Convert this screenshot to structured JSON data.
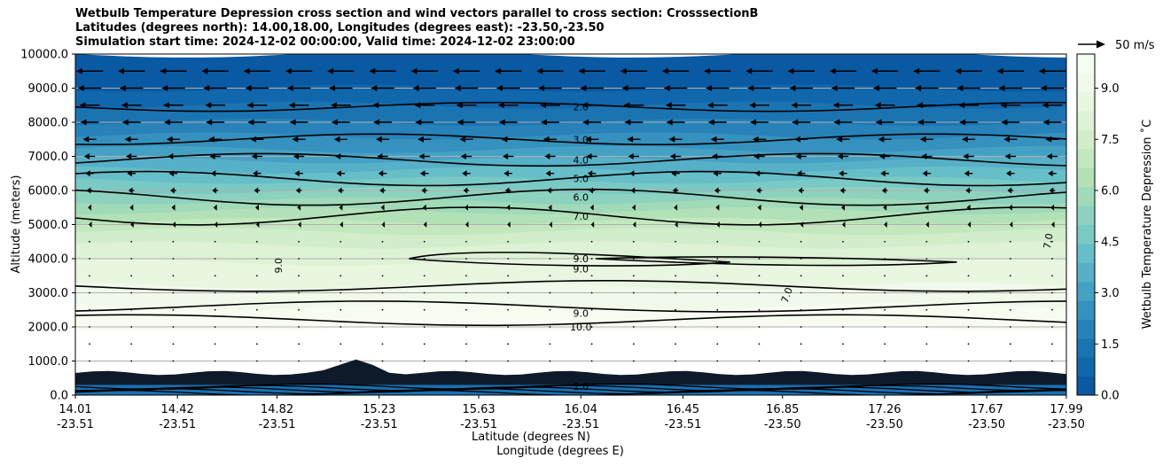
{
  "title": {
    "line1": "Wetbulb Temperature Depression cross section and wind vectors parallel to cross section: CrosssectionB",
    "line2": "Latitudes (degrees north): 14.00,18.00, Longitudes (degrees east): -23.50,-23.50",
    "line3": "Simulation start time: 2024-12-02 00:00:00, Valid time: 2024-12-02 23:00:00"
  },
  "chart_data": {
    "type": "contour",
    "ylabel": "Altitude (meters)",
    "xlabel_lat": "Latitude (degrees N)",
    "xlabel_lon": "Longitude (degrees E)",
    "ylim": [
      0,
      10000
    ],
    "yticks": [
      "0.0",
      "1000.0",
      "2000.0",
      "3000.0",
      "4000.0",
      "5000.0",
      "6000.0",
      "7000.0",
      "8000.0",
      "9000.0",
      "10000.0"
    ],
    "x_range": [
      14.01,
      17.99
    ],
    "xticks": [
      {
        "lat": "14.01",
        "lon": "-23.51",
        "value": 14.01
      },
      {
        "lat": "14.42",
        "lon": "-23.51",
        "value": 14.42
      },
      {
        "lat": "14.82",
        "lon": "-23.51",
        "value": 14.82
      },
      {
        "lat": "15.23",
        "lon": "-23.51",
        "value": 15.23
      },
      {
        "lat": "15.63",
        "lon": "-23.51",
        "value": 15.63
      },
      {
        "lat": "16.04",
        "lon": "-23.51",
        "value": 16.04
      },
      {
        "lat": "16.45",
        "lon": "-23.51",
        "value": 16.45
      },
      {
        "lat": "16.85",
        "lon": "-23.50",
        "value": 16.85
      },
      {
        "lat": "17.26",
        "lon": "-23.50",
        "value": 17.26
      },
      {
        "lat": "17.67",
        "lon": "-23.50",
        "value": 17.67
      },
      {
        "lat": "17.99",
        "lon": "-23.50",
        "value": 17.99
      }
    ],
    "colorbar": {
      "label": "Wetbulb Temperature Depression ˚C",
      "min": 0,
      "max": 10,
      "ticks": [
        "0.0",
        "1.5",
        "3.0",
        "4.5",
        "6.0",
        "7.5",
        "9.0"
      ],
      "tick_values": [
        0,
        1.5,
        3.0,
        4.5,
        6.0,
        7.5,
        9.0
      ],
      "colors": [
        "#0a5aa3",
        "#1167ab",
        "#1b74b2",
        "#2782b9",
        "#3591be",
        "#45a1c4",
        "#56b1c8",
        "#66bec8",
        "#79c9c4",
        "#8dd2be",
        "#a0dab8",
        "#b3e1b7",
        "#c3e8bf",
        "#d2edca",
        "#deF2d6",
        "#e9f6e0",
        "#f1f9ea",
        "#f7fcf1"
      ]
    },
    "contours": [
      {
        "label": "2.0",
        "altitude": 8450
      },
      {
        "label": "3.0",
        "altitude": 7500
      },
      {
        "label": "4.0",
        "altitude": 6900
      },
      {
        "label": "5.0",
        "altitude": 6350
      },
      {
        "label": "6.0",
        "altitude": 5800
      },
      {
        "label": "7.0",
        "altitude": 5250
      },
      {
        "label": "9.0",
        "altitude": 4000
      },
      {
        "label": "9.0",
        "altitude": 3700
      },
      {
        "label": "7.0",
        "altitude": 2900
      },
      {
        "label": "9.0",
        "altitude": 2400
      },
      {
        "label": "10.0",
        "altitude": 2000
      },
      {
        "label": "7.0",
        "altitude": 4500
      },
      {
        "label": "9.0",
        "altitude": 3800
      }
    ],
    "wind_reference": {
      "label": "50 m/s",
      "speed": 50
    },
    "wind_rows": [
      {
        "altitude": 9500,
        "u": -32
      },
      {
        "altitude": 9000,
        "u": -28
      },
      {
        "altitude": 8500,
        "u": -24
      },
      {
        "altitude": 8000,
        "u": -22
      },
      {
        "altitude": 7500,
        "u": -16
      },
      {
        "altitude": 7000,
        "u": -13
      },
      {
        "altitude": 6500,
        "u": -10
      },
      {
        "altitude": 6000,
        "u": -7
      },
      {
        "altitude": 5500,
        "u": -4
      },
      {
        "altitude": 5000,
        "u": -2
      },
      {
        "altitude": 4500,
        "u": -1
      },
      {
        "altitude": 4000,
        "u": -0.5
      },
      {
        "altitude": 3500,
        "u": -0.3
      },
      {
        "altitude": 3000,
        "u": -0.3
      },
      {
        "altitude": 2500,
        "u": -0.3
      },
      {
        "altitude": 2000,
        "u": -0.3
      },
      {
        "altitude": 1500,
        "u": -0.2
      },
      {
        "altitude": 1000,
        "u": -0.2
      }
    ]
  }
}
